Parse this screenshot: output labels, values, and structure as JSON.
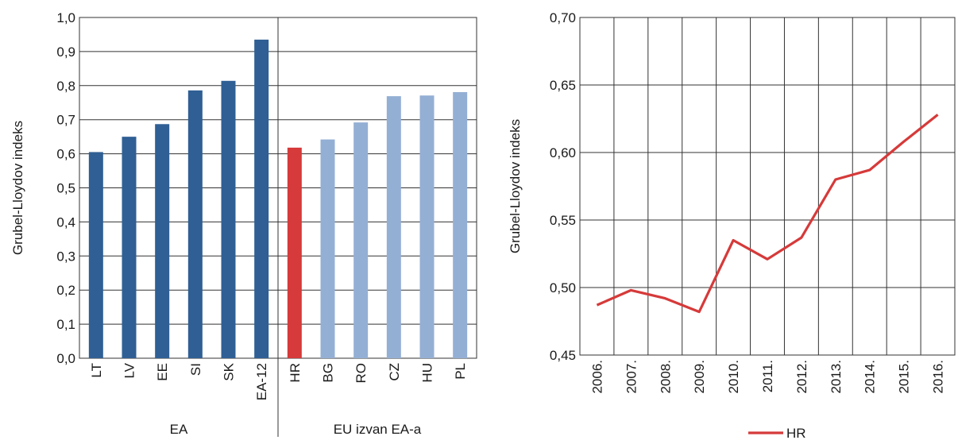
{
  "chart_data": [
    {
      "type": "bar",
      "ylabel": "Grubel-Lloydov indeks",
      "ylim": [
        0,
        1.0
      ],
      "yticks": [
        "0,0",
        "0,1",
        "0,2",
        "0,3",
        "0,4",
        "0,5",
        "0,6",
        "0,7",
        "0,8",
        "0,9",
        "1,0"
      ],
      "grid": true,
      "categories": [
        "LT",
        "LV",
        "EE",
        "SI",
        "SK",
        "EA-12",
        "HR",
        "BG",
        "RO",
        "CZ",
        "HU",
        "PL"
      ],
      "values": [
        0.605,
        0.65,
        0.687,
        0.786,
        0.814,
        0.935,
        0.618,
        0.642,
        0.692,
        0.769,
        0.771,
        0.781
      ],
      "groups": [
        {
          "label": "EA",
          "categories": [
            "LT",
            "LV",
            "EE",
            "SI",
            "SK",
            "EA-12"
          ]
        },
        {
          "label": "EU izvan EA-a",
          "categories": [
            "HR",
            "BG",
            "RO",
            "CZ",
            "HU",
            "PL"
          ]
        }
      ],
      "colors": {
        "EA": "#2f5f94",
        "HR": "#d63a3a",
        "EU izvan EA-a": "#94afd4"
      }
    },
    {
      "type": "line",
      "ylabel": "Grubel-Lloydov indeks",
      "ylim": [
        0.45,
        0.7
      ],
      "yticks": [
        "0,45",
        "0,50",
        "0,55",
        "0,60",
        "0,65",
        "0,70"
      ],
      "grid": true,
      "x": [
        "2006.",
        "2007.",
        "2008.",
        "2009.",
        "2010.",
        "2011.",
        "2012.",
        "2013.",
        "2014.",
        "2015.",
        "2016."
      ],
      "series": [
        {
          "name": "HR",
          "color": "#d63a3a",
          "values": [
            0.487,
            0.498,
            0.492,
            0.482,
            0.535,
            0.521,
            0.537,
            0.58,
            0.587,
            0.608,
            0.628
          ]
        }
      ],
      "legend": "bottom-center"
    }
  ]
}
